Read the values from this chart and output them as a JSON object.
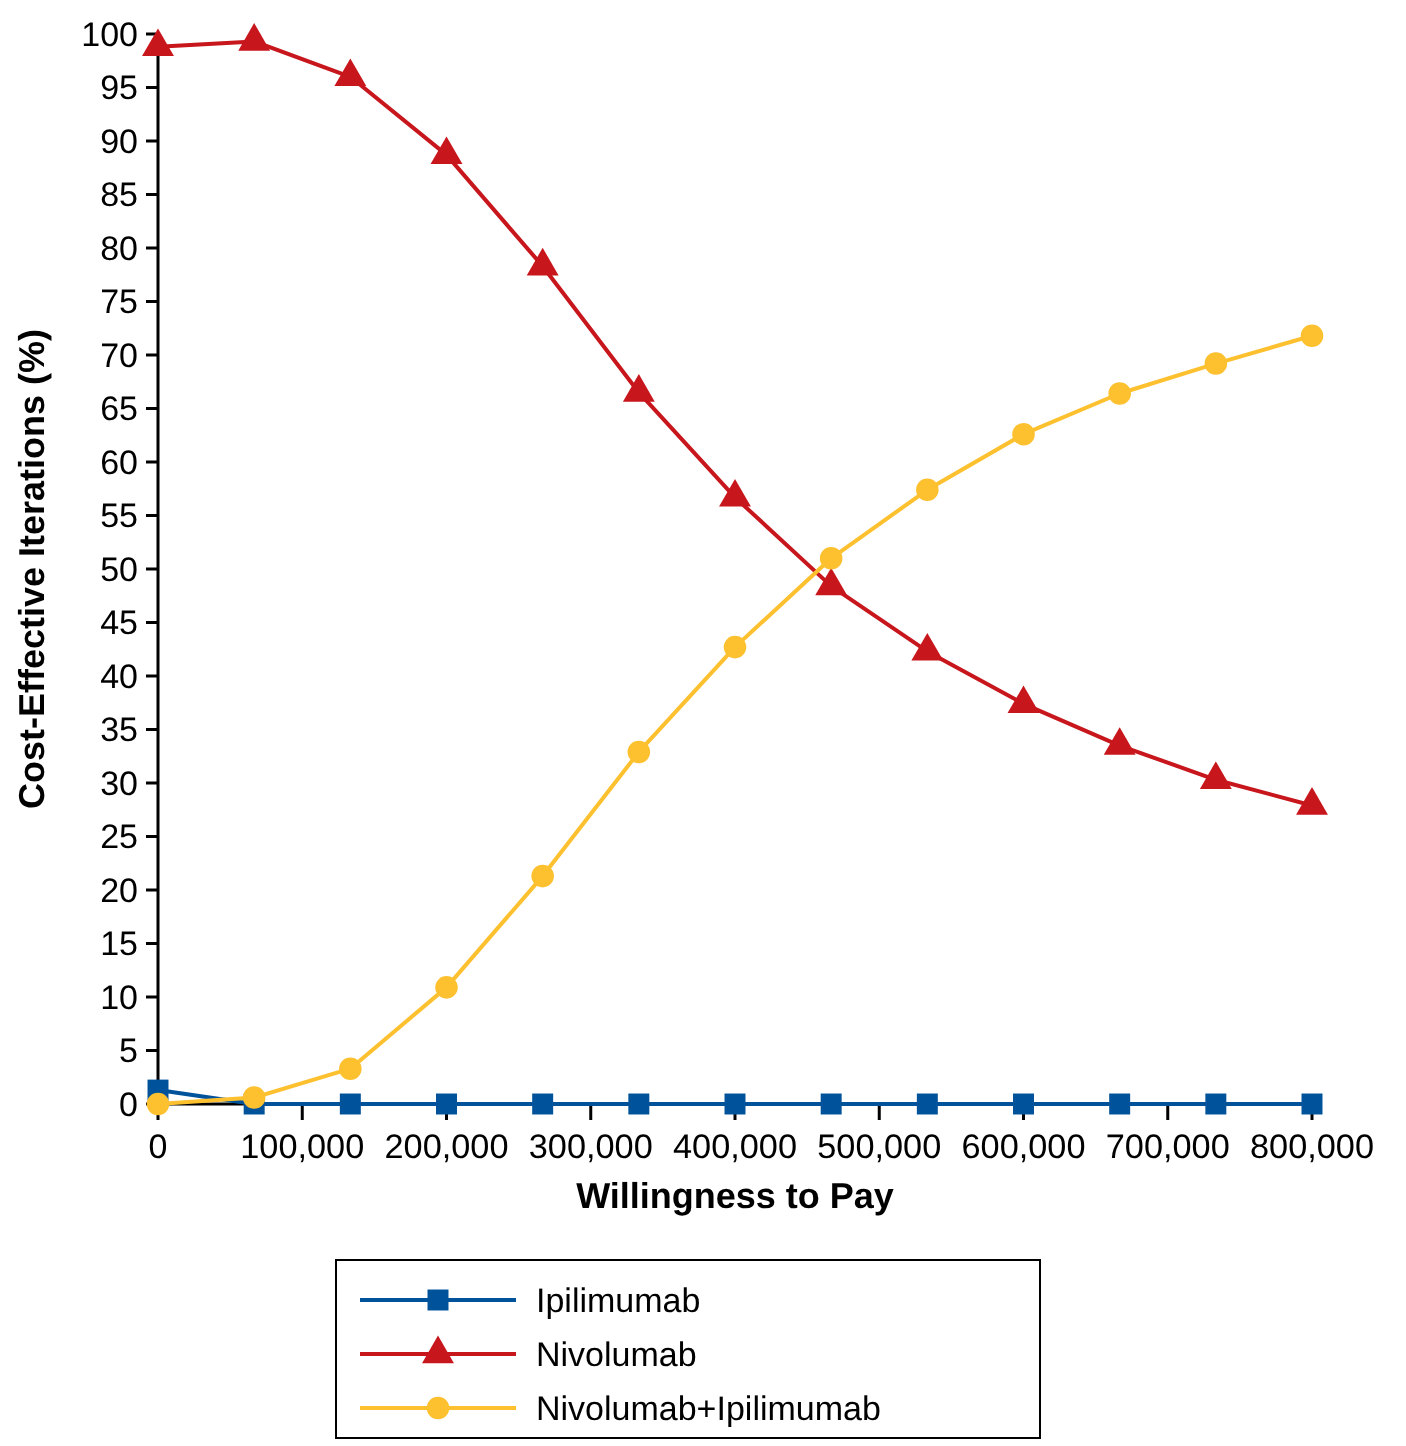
{
  "chart_data": {
    "type": "line",
    "xlabel": "Willingness to Pay",
    "ylabel": "Cost-Effective Iterations (%)",
    "x": [
      0,
      66667,
      133333,
      200000,
      266667,
      333333,
      400000,
      466667,
      533333,
      600000,
      666667,
      733333,
      800000
    ],
    "xlim": [
      0,
      800000
    ],
    "xticks": [
      0,
      {
        "value": 100000,
        "label": "100,000"
      },
      {
        "value": 200000,
        "label": "200,000"
      },
      {
        "value": 300000,
        "label": "300,000"
      },
      {
        "value": 400000,
        "label": "400,000"
      },
      {
        "value": 500000,
        "label": "500,000"
      },
      {
        "value": 600000,
        "label": "600,000"
      },
      {
        "value": 700000,
        "label": "700,000"
      },
      {
        "value": 800000,
        "label": "800,000"
      }
    ],
    "ylim": [
      0,
      100
    ],
    "yticks": [
      0,
      5,
      10,
      15,
      20,
      25,
      30,
      35,
      40,
      45,
      50,
      55,
      60,
      65,
      70,
      75,
      80,
      85,
      90,
      95,
      100
    ],
    "grid": false,
    "legend": "bottom",
    "line_style": "solid",
    "series": [
      {
        "name": "Ipilimumab",
        "color": "#00539b",
        "marker": "square",
        "values": [
          1.3,
          0,
          0,
          0,
          0,
          0,
          0,
          0,
          0,
          0,
          0,
          0,
          0
        ]
      },
      {
        "name": "Nivolumab",
        "color": "#c8161d",
        "marker": "triangle",
        "values": [
          98.8,
          99.3,
          96,
          88.7,
          78.3,
          66.5,
          56.7,
          48.4,
          42.3,
          37.4,
          33.5,
          30.3,
          27.9
        ]
      },
      {
        "name": "Nivolumab+Ipilimumab",
        "color": "#fdc02f",
        "marker": "circle",
        "values": [
          0,
          0.6,
          3.3,
          10.9,
          21.3,
          32.9,
          42.7,
          51,
          57.4,
          62.6,
          66.4,
          69.2,
          71.8
        ]
      }
    ]
  }
}
